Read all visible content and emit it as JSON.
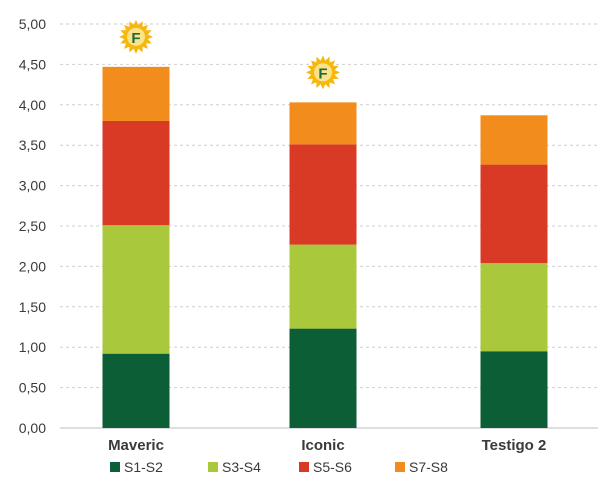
{
  "chart_data": {
    "type": "bar",
    "stacked": true,
    "categories": [
      "Maveric",
      "Iconic",
      "Testigo 2"
    ],
    "series": [
      {
        "name": "S1-S2",
        "color": "#0b5e35",
        "values": [
          0.92,
          1.23,
          0.95
        ]
      },
      {
        "name": "S3-S4",
        "color": "#a9c83c",
        "values": [
          1.59,
          1.04,
          1.09
        ]
      },
      {
        "name": "S5-S6",
        "color": "#d93a26",
        "values": [
          1.29,
          1.24,
          1.22
        ]
      },
      {
        "name": "S7-S8",
        "color": "#f28c1c",
        "values": [
          0.67,
          0.52,
          0.61
        ]
      }
    ],
    "ylim": [
      0,
      5
    ],
    "yticks": [
      "0,00",
      "0,50",
      "1,00",
      "1,50",
      "2,00",
      "2,50",
      "3,00",
      "3,50",
      "4,00",
      "4,50",
      "5,00"
    ],
    "grid": "horizontal dashed",
    "legend_position": "bottom",
    "badges": [
      {
        "category": "Maveric",
        "text": "F",
        "icon": "sun-badge-icon",
        "color": "#f6b80f"
      },
      {
        "category": "Iconic",
        "text": "F",
        "icon": "sun-badge-icon",
        "color": "#f6b80f"
      }
    ]
  }
}
